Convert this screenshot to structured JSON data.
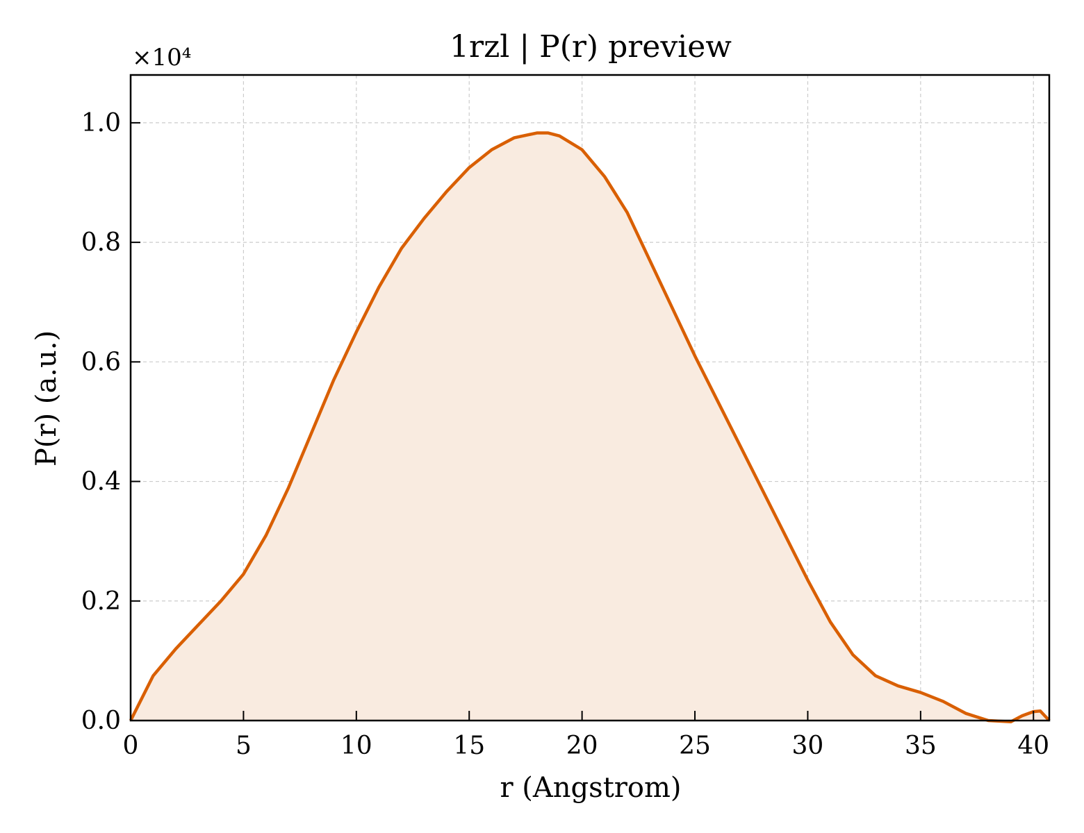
{
  "chart_data": {
    "type": "area",
    "title": "1rzl | P(r) preview",
    "xlabel": "r (Angstrom)",
    "ylabel": "P(r) (a.u.)",
    "y_offset_label": "×10⁴",
    "xlim": [
      0,
      40.7
    ],
    "ylim": [
      0,
      1.08
    ],
    "x_ticks": [
      0,
      5,
      10,
      15,
      20,
      25,
      30,
      35,
      40
    ],
    "x_tick_labels": [
      "0",
      "5",
      "10",
      "15",
      "20",
      "25",
      "30",
      "35",
      "40"
    ],
    "y_ticks": [
      0,
      0.2,
      0.4,
      0.6,
      0.8,
      1.0
    ],
    "y_tick_labels": [
      "0.0",
      "0.2",
      "0.4",
      "0.6",
      "0.8",
      "1.0"
    ],
    "grid": true,
    "colors": {
      "line": "#d95f02",
      "fill": "#f9ebe0"
    },
    "series": [
      {
        "x": [
          0,
          1,
          2,
          3,
          4,
          5,
          6,
          7,
          8,
          9,
          10,
          11,
          12,
          13,
          14,
          15,
          16,
          17,
          18,
          18.5,
          19,
          20,
          21,
          22,
          23,
          24,
          25,
          26,
          27,
          28,
          29,
          30,
          31,
          32,
          33,
          34,
          35,
          36,
          37,
          38,
          39,
          39.5,
          40,
          40.3,
          40.7
        ],
        "y": [
          0,
          0.075,
          0.12,
          0.16,
          0.2,
          0.245,
          0.31,
          0.39,
          0.48,
          0.57,
          0.65,
          0.725,
          0.79,
          0.84,
          0.885,
          0.925,
          0.955,
          0.975,
          0.983,
          0.983,
          0.978,
          0.955,
          0.91,
          0.85,
          0.77,
          0.69,
          0.61,
          0.535,
          0.46,
          0.385,
          0.31,
          0.235,
          0.165,
          0.11,
          0.075,
          0.058,
          0.047,
          0.032,
          0.012,
          0.0,
          -0.002,
          0.008,
          0.015,
          0.016,
          0.0
        ]
      }
    ]
  }
}
